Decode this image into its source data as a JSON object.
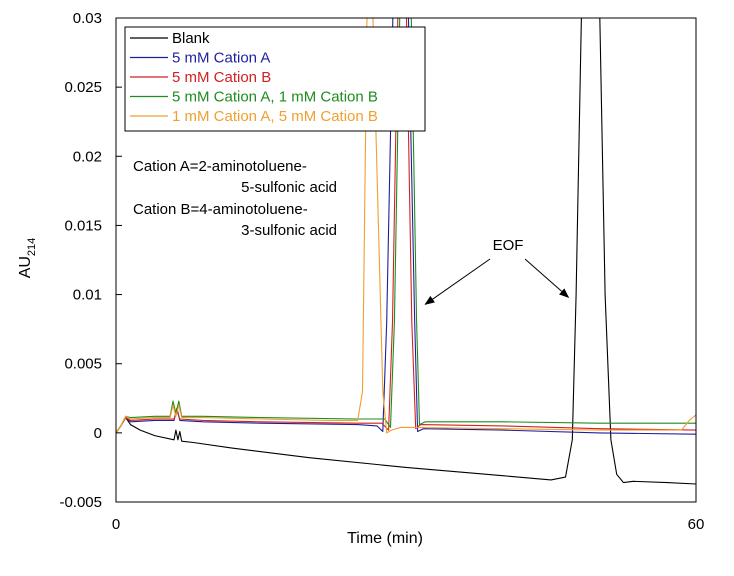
{
  "chart_data": {
    "type": "line",
    "title": "",
    "xlabel": "Time (min)",
    "ylabel": "AU",
    "ylabel_subscript": "214",
    "xlim": [
      0,
      60
    ],
    "ylim": [
      -0.005,
      0.03
    ],
    "x_ticks": [
      0,
      60
    ],
    "y_ticks": [
      -0.005,
      0,
      0.005,
      0.01,
      0.015,
      0.02,
      0.025,
      0.03
    ],
    "y_tick_labels": [
      "-0.005",
      "0",
      "0.005",
      "0.01",
      "0.015",
      "0.02",
      "0.025",
      "0.03"
    ],
    "x_tick_labels": [
      "0",
      "60"
    ],
    "grid": false,
    "legend_position": "top-left",
    "series": [
      {
        "name": "Blank",
        "color": "#000000",
        "x": [
          0,
          0.5,
          1.0,
          1.5,
          2.5,
          4,
          6,
          6.2,
          6.4,
          6.6,
          6.8,
          8,
          12,
          20,
          30,
          40,
          45,
          46.5,
          47.2,
          47.6,
          48.2,
          50,
          50.6,
          51.2,
          51.8,
          52.5,
          53.5,
          57,
          60
        ],
        "y": [
          0,
          0.0005,
          0.0011,
          0.0006,
          0.0002,
          -0.0002,
          -0.0005,
          0.0002,
          -0.0005,
          0.0001,
          -0.0006,
          -0.0007,
          -0.0011,
          -0.0018,
          -0.0025,
          -0.0031,
          -0.0034,
          -0.0032,
          -0.0005,
          0.01,
          0.032,
          0.032,
          0.01,
          -0.0005,
          -0.003,
          -0.0036,
          -0.0035,
          -0.0036,
          -0.0037
        ]
      },
      {
        "name": "5 mM Cation A",
        "color": "#1f1f9e",
        "x": [
          0,
          0.5,
          1.0,
          1.5,
          4,
          6,
          6.3,
          6.6,
          9,
          15,
          25,
          27,
          27.6,
          28.0,
          28.7,
          30.2,
          30.9,
          31.2,
          31.8,
          40,
          50,
          60
        ],
        "y": [
          0,
          0.0005,
          0.0011,
          0.0008,
          0.0009,
          0.0009,
          0.0018,
          0.0009,
          0.0008,
          0.0007,
          0.0006,
          0.0005,
          0.0001,
          0.008,
          0.032,
          0.032,
          0.008,
          0.0001,
          0.0003,
          0.0002,
          0.0,
          -0.0001
        ]
      },
      {
        "name": "5 mM Cation B",
        "color": "#d42020",
        "x": [
          0,
          0.5,
          1.0,
          1.5,
          4,
          6,
          6.3,
          6.6,
          9,
          15,
          25,
          27.5,
          28.2,
          28.6,
          29.2,
          30.0,
          30.6,
          31.0,
          31.5,
          40,
          50,
          60
        ],
        "y": [
          0,
          0.0005,
          0.0011,
          0.0009,
          0.001,
          0.001,
          0.0016,
          0.001,
          0.0009,
          0.0008,
          0.0007,
          0.0007,
          0.0002,
          0.008,
          0.032,
          0.032,
          0.008,
          0.0003,
          0.0006,
          0.0005,
          0.0003,
          0.0002
        ]
      },
      {
        "name": "5 mM Cation A, 1 mM Cation B",
        "color": "#1e8c1e",
        "x": [
          0,
          0.5,
          1.0,
          1.5,
          4,
          5.6,
          5.9,
          6.2,
          6.5,
          6.8,
          9,
          15,
          25,
          27.8,
          28.4,
          28.8,
          29.4,
          30.5,
          31.1,
          31.4,
          32,
          40,
          50,
          60
        ],
        "y": [
          0,
          0.0005,
          0.0012,
          0.0011,
          0.0012,
          0.0012,
          0.0023,
          0.0014,
          0.0023,
          0.0012,
          0.0012,
          0.0011,
          0.001,
          0.001,
          0.0004,
          0.008,
          0.032,
          0.032,
          0.008,
          0.0006,
          0.0008,
          0.0008,
          0.0007,
          0.0007
        ]
      },
      {
        "name": "1 mM Cation A, 5 mM Cation B",
        "color": "#f0a030",
        "x": [
          0,
          0.5,
          1.0,
          1.5,
          4,
          5.6,
          5.9,
          6.2,
          6.5,
          6.8,
          9,
          15,
          22,
          25.0,
          25.5,
          26.0,
          26.5,
          27.6,
          28.0,
          28.5,
          29.5,
          40,
          50,
          58.5,
          59.3,
          60
        ],
        "y": [
          0,
          0.0005,
          0.0012,
          0.001,
          0.0011,
          0.0011,
          0.002,
          0.0012,
          0.002,
          0.0011,
          0.0011,
          0.001,
          0.0009,
          0.0009,
          0.003,
          0.032,
          0.032,
          0.003,
          0.0,
          0.0002,
          0.0004,
          0.0003,
          0.0002,
          0.0002,
          0.0009,
          0.0013
        ]
      }
    ],
    "annotations": {
      "definition_lines": [
        "Cation A=2-aminotoluene-",
        "5-sulfonic acid",
        "Cation B=4-aminotoluene-",
        "3-sulfonic acid"
      ],
      "eof_label": "EOF",
      "eof_arrow_targets": [
        {
          "x": 32.0,
          "y": 0.0093
        },
        {
          "x": 46.8,
          "y": 0.0098
        }
      ]
    }
  }
}
